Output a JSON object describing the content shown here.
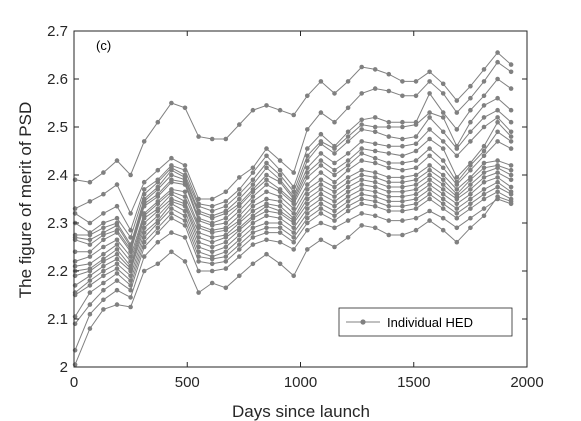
{
  "chart_data": {
    "type": "line",
    "panel_label": "(c)",
    "xlabel": "Days since launch",
    "ylabel": "The figure of merit of PSD",
    "xlim": [
      0,
      2000
    ],
    "ylim": [
      2.0,
      2.7
    ],
    "xticks": [
      0,
      500,
      1000,
      1500,
      2000
    ],
    "yticks": [
      2.0,
      2.1,
      2.2,
      2.3,
      2.4,
      2.5,
      2.6,
      2.7
    ],
    "ytick_labels": [
      "2",
      "2.1",
      "2.2",
      "2.3",
      "2.4",
      "2.5",
      "2.6",
      "2.7"
    ],
    "grid": false,
    "legend": {
      "position": "bottom-right",
      "entries": [
        "Individual HED"
      ]
    },
    "color": "#808080",
    "x": [
      5,
      70,
      130,
      190,
      250,
      310,
      370,
      430,
      490,
      550,
      610,
      670,
      730,
      790,
      850,
      910,
      970,
      1030,
      1090,
      1150,
      1210,
      1270,
      1330,
      1390,
      1450,
      1510,
      1570,
      1630,
      1690,
      1750,
      1810,
      1870,
      1930
    ],
    "series": [
      {
        "values": [
          2.39,
          2.385,
          2.405,
          2.43,
          2.4,
          2.47,
          2.51,
          2.55,
          2.54,
          2.48,
          2.475,
          2.475,
          2.505,
          2.535,
          2.545,
          2.535,
          2.525,
          2.565,
          2.595,
          2.57,
          2.595,
          2.625,
          2.62,
          2.61,
          2.595,
          2.595,
          2.615,
          2.59,
          2.555,
          2.585,
          2.62,
          2.655,
          2.63
        ]
      },
      {
        "values": [
          2.33,
          2.345,
          2.36,
          2.38,
          2.32,
          2.385,
          2.41,
          2.435,
          2.42,
          2.35,
          2.35,
          2.365,
          2.395,
          2.415,
          2.455,
          2.43,
          2.405,
          2.495,
          2.53,
          2.51,
          2.54,
          2.57,
          2.58,
          2.575,
          2.565,
          2.565,
          2.595,
          2.57,
          2.53,
          2.56,
          2.595,
          2.635,
          2.615
        ]
      },
      {
        "values": [
          2.32,
          2.3,
          2.32,
          2.335,
          2.285,
          2.37,
          2.39,
          2.42,
          2.41,
          2.34,
          2.335,
          2.345,
          2.37,
          2.405,
          2.44,
          2.41,
          2.375,
          2.455,
          2.485,
          2.46,
          2.49,
          2.515,
          2.52,
          2.51,
          2.51,
          2.51,
          2.57,
          2.53,
          2.495,
          2.535,
          2.565,
          2.6,
          2.58
        ]
      },
      {
        "values": [
          2.3,
          2.28,
          2.3,
          2.31,
          2.27,
          2.36,
          2.385,
          2.415,
          2.4,
          2.335,
          2.325,
          2.335,
          2.36,
          2.39,
          2.425,
          2.4,
          2.365,
          2.44,
          2.47,
          2.455,
          2.48,
          2.505,
          2.5,
          2.5,
          2.5,
          2.505,
          2.53,
          2.52,
          2.46,
          2.51,
          2.545,
          2.56,
          2.535
        ]
      },
      {
        "values": [
          2.275,
          2.275,
          2.29,
          2.3,
          2.255,
          2.35,
          2.375,
          2.41,
          2.395,
          2.325,
          2.315,
          2.325,
          2.35,
          2.38,
          2.415,
          2.39,
          2.355,
          2.43,
          2.465,
          2.445,
          2.47,
          2.495,
          2.49,
          2.48,
          2.475,
          2.48,
          2.52,
          2.49,
          2.455,
          2.49,
          2.52,
          2.535,
          2.51
        ]
      },
      {
        "values": [
          2.27,
          2.265,
          2.28,
          2.295,
          2.25,
          2.345,
          2.37,
          2.4,
          2.39,
          2.32,
          2.31,
          2.32,
          2.34,
          2.37,
          2.4,
          2.385,
          2.35,
          2.415,
          2.445,
          2.425,
          2.445,
          2.47,
          2.465,
          2.46,
          2.46,
          2.465,
          2.495,
          2.47,
          2.44,
          2.47,
          2.5,
          2.52,
          2.49
        ]
      },
      {
        "values": [
          2.265,
          2.255,
          2.275,
          2.285,
          2.245,
          2.34,
          2.36,
          2.39,
          2.385,
          2.31,
          2.3,
          2.31,
          2.335,
          2.365,
          2.39,
          2.37,
          2.345,
          2.405,
          2.43,
          2.41,
          2.43,
          2.455,
          2.45,
          2.445,
          2.44,
          2.45,
          2.475,
          2.455,
          2.395,
          2.425,
          2.46,
          2.51,
          2.48
        ]
      },
      {
        "values": [
          2.24,
          2.24,
          2.265,
          2.28,
          2.24,
          2.335,
          2.355,
          2.385,
          2.38,
          2.305,
          2.295,
          2.3,
          2.325,
          2.355,
          2.38,
          2.365,
          2.34,
          2.395,
          2.42,
          2.4,
          2.42,
          2.445,
          2.435,
          2.425,
          2.425,
          2.43,
          2.455,
          2.43,
          2.385,
          2.42,
          2.45,
          2.49,
          2.47
        ]
      },
      {
        "values": [
          2.22,
          2.23,
          2.25,
          2.265,
          2.23,
          2.32,
          2.345,
          2.37,
          2.365,
          2.295,
          2.285,
          2.29,
          2.315,
          2.345,
          2.365,
          2.355,
          2.33,
          2.38,
          2.405,
          2.385,
          2.41,
          2.43,
          2.425,
          2.415,
          2.41,
          2.415,
          2.44,
          2.415,
          2.38,
          2.41,
          2.44,
          2.47,
          2.455
        ]
      },
      {
        "values": [
          2.21,
          2.215,
          2.235,
          2.255,
          2.22,
          2.315,
          2.34,
          2.365,
          2.355,
          2.29,
          2.28,
          2.285,
          2.305,
          2.335,
          2.35,
          2.345,
          2.32,
          2.37,
          2.39,
          2.375,
          2.395,
          2.41,
          2.405,
          2.395,
          2.395,
          2.4,
          2.42,
          2.4,
          2.37,
          2.395,
          2.425,
          2.43,
          2.42
        ]
      },
      {
        "values": [
          2.2,
          2.205,
          2.225,
          2.245,
          2.21,
          2.31,
          2.33,
          2.36,
          2.345,
          2.28,
          2.27,
          2.275,
          2.3,
          2.325,
          2.34,
          2.335,
          2.31,
          2.36,
          2.38,
          2.365,
          2.385,
          2.4,
          2.395,
          2.385,
          2.385,
          2.39,
          2.41,
          2.39,
          2.36,
          2.39,
          2.415,
          2.42,
          2.41
        ]
      },
      {
        "values": [
          2.19,
          2.2,
          2.22,
          2.235,
          2.205,
          2.3,
          2.325,
          2.35,
          2.34,
          2.27,
          2.26,
          2.27,
          2.29,
          2.315,
          2.335,
          2.325,
          2.305,
          2.35,
          2.37,
          2.355,
          2.375,
          2.39,
          2.385,
          2.375,
          2.375,
          2.38,
          2.4,
          2.38,
          2.355,
          2.38,
          2.405,
          2.415,
          2.4
        ]
      },
      {
        "values": [
          2.17,
          2.19,
          2.21,
          2.225,
          2.2,
          2.29,
          2.315,
          2.345,
          2.335,
          2.26,
          2.25,
          2.26,
          2.285,
          2.31,
          2.325,
          2.32,
          2.3,
          2.34,
          2.36,
          2.345,
          2.365,
          2.38,
          2.375,
          2.365,
          2.365,
          2.37,
          2.39,
          2.37,
          2.35,
          2.37,
          2.395,
          2.405,
          2.39
        ]
      },
      {
        "values": [
          2.155,
          2.18,
          2.2,
          2.215,
          2.19,
          2.28,
          2.305,
          2.34,
          2.325,
          2.25,
          2.24,
          2.25,
          2.275,
          2.3,
          2.315,
          2.31,
          2.29,
          2.33,
          2.35,
          2.335,
          2.355,
          2.37,
          2.365,
          2.355,
          2.355,
          2.36,
          2.38,
          2.36,
          2.34,
          2.36,
          2.385,
          2.395,
          2.375
        ]
      },
      {
        "values": [
          2.15,
          2.17,
          2.19,
          2.205,
          2.18,
          2.27,
          2.3,
          2.33,
          2.315,
          2.24,
          2.23,
          2.24,
          2.265,
          2.29,
          2.3,
          2.3,
          2.28,
          2.32,
          2.34,
          2.325,
          2.345,
          2.36,
          2.355,
          2.345,
          2.345,
          2.35,
          2.37,
          2.35,
          2.33,
          2.35,
          2.37,
          2.385,
          2.365
        ]
      },
      {
        "values": [
          2.105,
          2.155,
          2.175,
          2.195,
          2.17,
          2.26,
          2.29,
          2.32,
          2.305,
          2.23,
          2.225,
          2.23,
          2.255,
          2.28,
          2.29,
          2.29,
          2.27,
          2.31,
          2.33,
          2.315,
          2.335,
          2.35,
          2.345,
          2.335,
          2.335,
          2.34,
          2.36,
          2.34,
          2.32,
          2.34,
          2.36,
          2.375,
          2.36
        ]
      },
      {
        "values": [
          2.09,
          2.13,
          2.16,
          2.18,
          2.16,
          2.25,
          2.28,
          2.31,
          2.295,
          2.22,
          2.215,
          2.22,
          2.245,
          2.27,
          2.28,
          2.28,
          2.26,
          2.3,
          2.32,
          2.305,
          2.325,
          2.34,
          2.335,
          2.325,
          2.325,
          2.33,
          2.35,
          2.33,
          2.31,
          2.33,
          2.35,
          2.365,
          2.35
        ]
      },
      {
        "values": [
          2.035,
          2.11,
          2.14,
          2.16,
          2.145,
          2.23,
          2.26,
          2.28,
          2.27,
          2.2,
          2.2,
          2.205,
          2.23,
          2.255,
          2.265,
          2.26,
          2.245,
          2.285,
          2.3,
          2.29,
          2.305,
          2.32,
          2.315,
          2.305,
          2.305,
          2.31,
          2.325,
          2.31,
          2.29,
          2.31,
          2.33,
          2.35,
          2.34
        ]
      },
      {
        "values": [
          2.005,
          2.08,
          2.12,
          2.13,
          2.125,
          2.2,
          2.215,
          2.24,
          2.22,
          2.155,
          2.175,
          2.165,
          2.19,
          2.215,
          2.235,
          2.215,
          2.19,
          2.245,
          2.265,
          2.25,
          2.27,
          2.295,
          2.29,
          2.275,
          2.275,
          2.285,
          2.305,
          2.285,
          2.26,
          2.29,
          2.315,
          2.355,
          2.345
        ]
      }
    ]
  }
}
